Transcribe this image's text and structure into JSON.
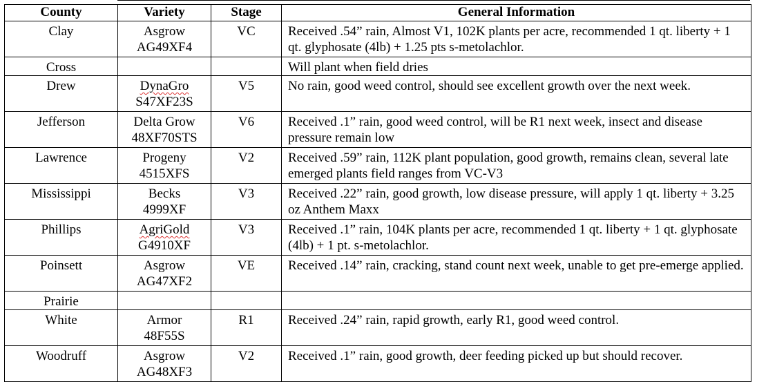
{
  "headers": {
    "county": "County",
    "variety": "Variety",
    "stage": "Stage",
    "info": "General Information"
  },
  "rows": [
    {
      "county": "Clay",
      "variety_1": "Asgrow",
      "variety_2": "AG49XF4",
      "stage": "VC",
      "info": "Received .54” rain, Almost V1, 102K plants per acre, recommended 1 qt. liberty + 1 qt. glyphosate (4lb) + 1.25 pts s-metolachlor."
    },
    {
      "county": "Cross",
      "variety_1": "",
      "variety_2": "",
      "stage": "",
      "info": "Will plant when field dries"
    },
    {
      "county": "Drew",
      "variety_1": "DynaGro",
      "variety_2": "S47XF23S",
      "stage": "V5",
      "info": "No rain, good weed control, should see excellent growth over the next week."
    },
    {
      "county": "Jefferson",
      "variety_1": "Delta Grow",
      "variety_2": "48XF70STS",
      "stage": "V6",
      "info": "Received .1” rain, good weed control, will be R1 next week, insect and disease pressure remain low"
    },
    {
      "county": "Lawrence",
      "variety_1": "Progeny",
      "variety_2": "4515XFS",
      "stage": "V2",
      "info": "Received .59” rain, 112K plant population, good growth, remains clean, several late emerged plants field ranges from VC-V3"
    },
    {
      "county": "Mississippi",
      "variety_1": "Becks",
      "variety_2": "4999XF",
      "stage": "V3",
      "info": "Received .22” rain, good growth, low disease pressure, will apply 1 qt. liberty + 3.25 oz Anthem Maxx"
    },
    {
      "county": "Phillips",
      "variety_1": "AgriGold",
      "variety_2": "G4910XF",
      "stage": "V3",
      "info": "Received .1” rain, 104K plants per acre, recommended 1 qt. liberty + 1 qt. glyphosate (4lb) + 1 pt. s-metolachlor."
    },
    {
      "county": "Poinsett",
      "variety_1": "Asgrow",
      "variety_2": "AG47XF2",
      "stage": "VE",
      "info": "Received .14” rain, cracking, stand count next week, unable to get pre-emerge applied."
    },
    {
      "county": "Prairie",
      "variety_1": "",
      "variety_2": "",
      "stage": "",
      "info": ""
    },
    {
      "county": "White",
      "variety_1": "Armor",
      "variety_2": "48F55S",
      "stage": "R1",
      "info": "Received .24” rain, rapid growth, early R1, good weed control."
    },
    {
      "county": "Woodruff",
      "variety_1": "Asgrow",
      "variety_2": "AG48XF3",
      "stage": "V2",
      "info": "Received .1” rain, good growth, deer feeding picked up but should recover."
    }
  ]
}
